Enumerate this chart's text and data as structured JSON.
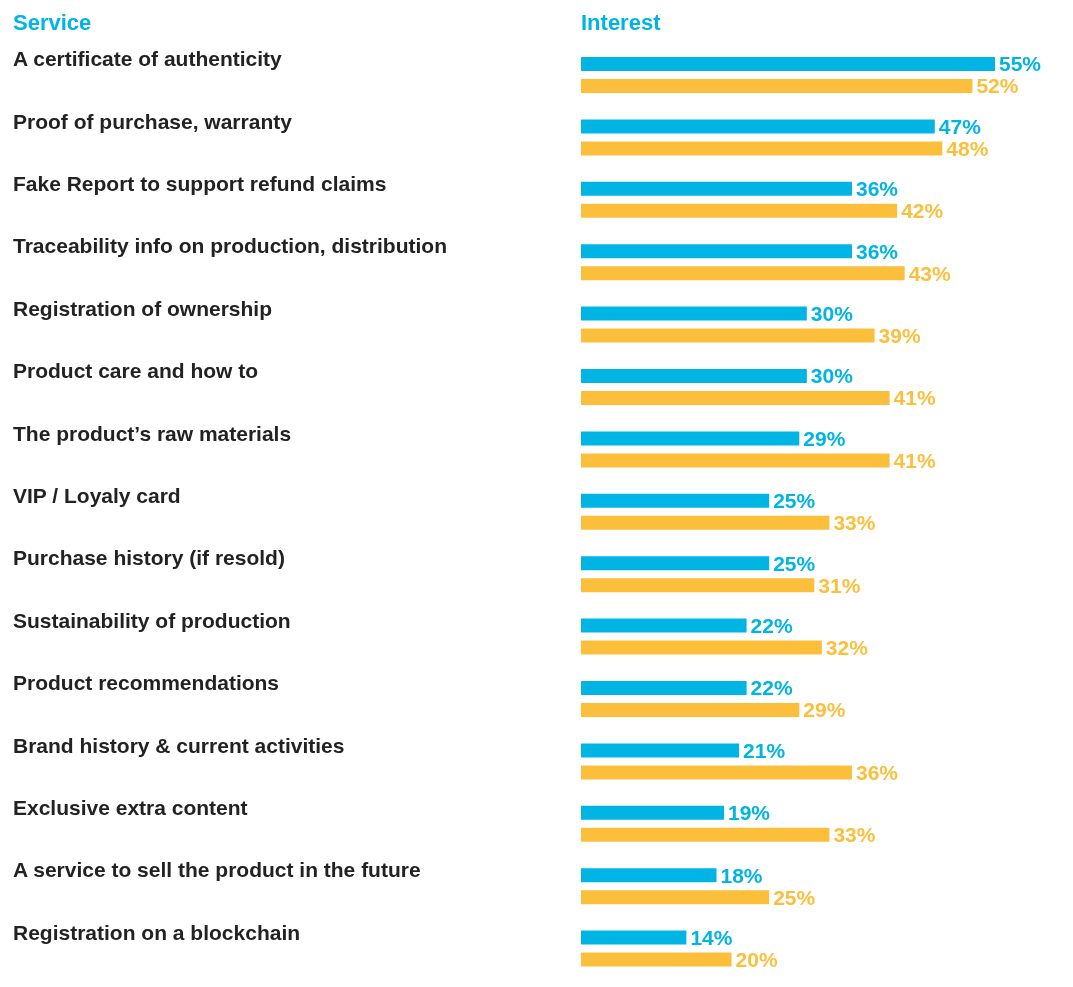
{
  "chart_data": {
    "type": "bar",
    "orientation": "horizontal",
    "xlabel": "Interest",
    "ylabel": "Service",
    "categories": [
      "A certificate of authenticity",
      "Proof of purchase, warranty",
      "Fake Report to support refund claims",
      "Traceability info on production, distribution",
      "Registration of ownership",
      "Product care and how to",
      "The product’s raw materials",
      "VIP / Loyaly card",
      "Purchase history (if resold)",
      "Sustainability of production",
      "Product recommendations",
      "Brand history & current activities",
      "Exclusive extra content",
      "A service to sell the product in the future",
      "Registration on a blockchain"
    ],
    "series": [
      {
        "color": "#00b4e4",
        "values": [
          55,
          47,
          36,
          36,
          30,
          30,
          29,
          25,
          25,
          22,
          22,
          21,
          19,
          18,
          14
        ],
        "value_labels": [
          "55%",
          "47%",
          "36%",
          "36%",
          "30%",
          "30%",
          "29%",
          "25%",
          "25%",
          "22%",
          "22%",
          "21%",
          "19%",
          "18%",
          "14%"
        ]
      },
      {
        "color": "#fbbf3c",
        "values": [
          52,
          48,
          42,
          43,
          39,
          41,
          41,
          33,
          31,
          32,
          29,
          36,
          33,
          25,
          20
        ],
        "value_labels": [
          "52%",
          "48%",
          "42%",
          "43%",
          "39%",
          "41%",
          "41%",
          "33%",
          "31%",
          "32%",
          "29%",
          "36%",
          "33%",
          "25%",
          "20%"
        ]
      }
    ]
  }
}
